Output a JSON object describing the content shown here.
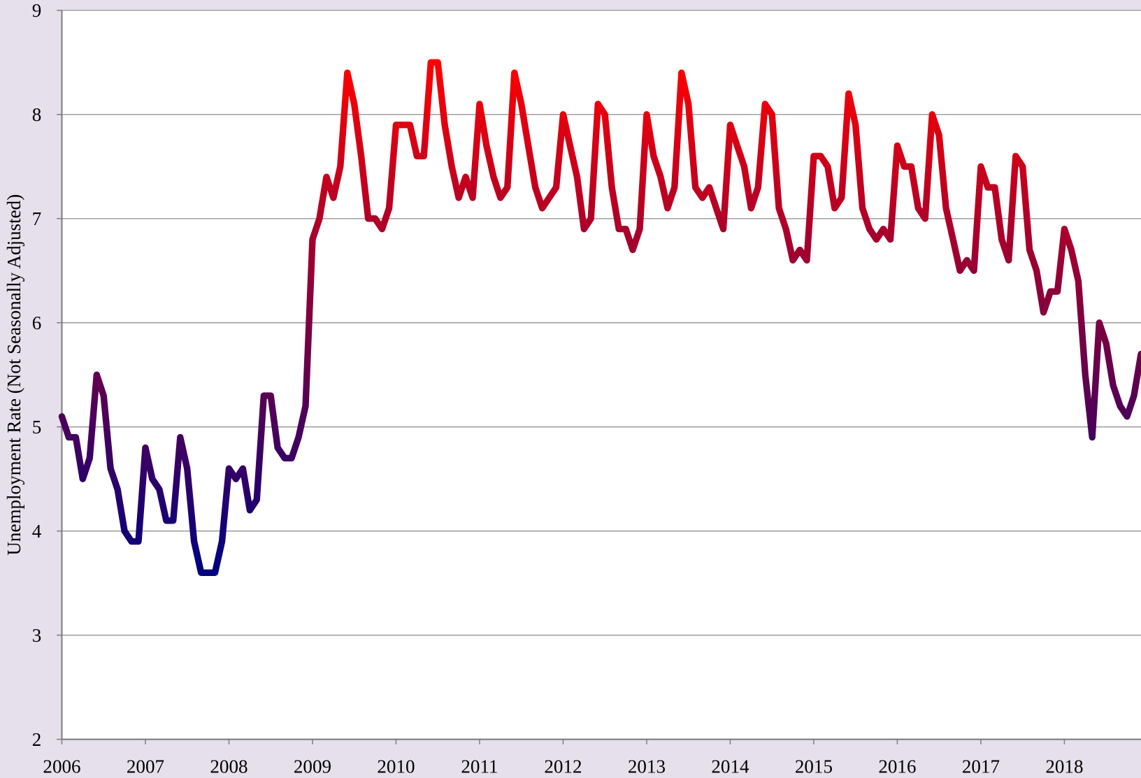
{
  "chart_data": {
    "type": "line",
    "y_label": "Unemployment Rate (Not Seasonally Adjusted)",
    "x": [
      2006,
      2006.083,
      2006.167,
      2006.25,
      2006.333,
      2006.417,
      2006.5,
      2006.583,
      2006.667,
      2006.75,
      2006.833,
      2006.917,
      2007,
      2007.083,
      2007.167,
      2007.25,
      2007.333,
      2007.417,
      2007.5,
      2007.583,
      2007.667,
      2007.75,
      2007.833,
      2007.917,
      2008,
      2008.083,
      2008.167,
      2008.25,
      2008.333,
      2008.417,
      2008.5,
      2008.583,
      2008.667,
      2008.75,
      2008.833,
      2008.917,
      2009,
      2009.083,
      2009.167,
      2009.25,
      2009.333,
      2009.417,
      2009.5,
      2009.583,
      2009.667,
      2009.75,
      2009.833,
      2009.917,
      2010,
      2010.083,
      2010.167,
      2010.25,
      2010.333,
      2010.417,
      2010.5,
      2010.583,
      2010.667,
      2010.75,
      2010.833,
      2010.917,
      2011,
      2011.083,
      2011.167,
      2011.25,
      2011.333,
      2011.417,
      2011.5,
      2011.583,
      2011.667,
      2011.75,
      2011.833,
      2011.917,
      2012,
      2012.083,
      2012.167,
      2012.25,
      2012.333,
      2012.417,
      2012.5,
      2012.583,
      2012.667,
      2012.75,
      2012.833,
      2012.917,
      2013,
      2013.083,
      2013.167,
      2013.25,
      2013.333,
      2013.417,
      2013.5,
      2013.583,
      2013.667,
      2013.75,
      2013.833,
      2013.917,
      2014,
      2014.083,
      2014.167,
      2014.25,
      2014.333,
      2014.417,
      2014.5,
      2014.583,
      2014.667,
      2014.75,
      2014.833,
      2014.917,
      2015,
      2015.083,
      2015.167,
      2015.25,
      2015.333,
      2015.417,
      2015.5,
      2015.583,
      2015.667,
      2015.75,
      2015.833,
      2015.917,
      2016,
      2016.083,
      2016.167,
      2016.25,
      2016.333,
      2016.417,
      2016.5,
      2016.583,
      2016.667,
      2016.75,
      2016.833,
      2016.917,
      2017,
      2017.083,
      2017.167,
      2017.25,
      2017.333,
      2017.417,
      2017.5,
      2017.583,
      2017.667,
      2017.75,
      2017.833,
      2017.917,
      2018,
      2018.083,
      2018.167,
      2018.25,
      2018.333,
      2018.417,
      2018.5,
      2018.583,
      2018.667,
      2018.75,
      2018.833,
      2018.917
    ],
    "values": [
      5.1,
      4.9,
      4.9,
      4.5,
      4.7,
      5.5,
      5.3,
      4.6,
      4.4,
      4.0,
      3.9,
      3.9,
      4.8,
      4.5,
      4.4,
      4.1,
      4.1,
      4.9,
      4.6,
      3.9,
      3.6,
      3.6,
      3.6,
      3.9,
      4.6,
      4.5,
      4.6,
      4.2,
      4.3,
      5.3,
      5.3,
      4.8,
      4.7,
      4.7,
      4.9,
      5.2,
      6.8,
      7.0,
      7.4,
      7.2,
      7.5,
      8.4,
      8.1,
      7.6,
      7.0,
      7.0,
      6.9,
      7.1,
      7.9,
      7.9,
      7.9,
      7.6,
      7.6,
      8.5,
      8.5,
      7.9,
      7.5,
      7.2,
      7.4,
      7.2,
      8.1,
      7.7,
      7.4,
      7.2,
      7.3,
      8.4,
      8.1,
      7.7,
      7.3,
      7.1,
      7.2,
      7.3,
      8.0,
      7.7,
      7.4,
      6.9,
      7.0,
      8.1,
      8.0,
      7.3,
      6.9,
      6.9,
      6.7,
      6.9,
      8.0,
      7.6,
      7.4,
      7.1,
      7.3,
      8.4,
      8.1,
      7.3,
      7.2,
      7.3,
      7.1,
      6.9,
      7.9,
      7.7,
      7.5,
      7.1,
      7.3,
      8.1,
      8.0,
      7.1,
      6.9,
      6.6,
      6.7,
      6.6,
      7.6,
      7.6,
      7.5,
      7.1,
      7.2,
      8.2,
      7.9,
      7.1,
      6.9,
      6.8,
      6.9,
      6.8,
      7.7,
      7.5,
      7.5,
      7.1,
      7.0,
      8.0,
      7.8,
      7.1,
      6.8,
      6.5,
      6.6,
      6.5,
      7.5,
      7.3,
      7.3,
      6.8,
      6.6,
      7.6,
      7.5,
      6.7,
      6.5,
      6.1,
      6.3,
      6.3,
      6.9,
      6.7,
      6.4,
      5.5,
      4.9,
      6.0,
      5.8,
      5.4,
      5.2,
      5.1,
      5.3,
      5.7
    ],
    "color_low": "#000080",
    "color_high": "#ff0000",
    "xlim": [
      2006,
      2018.917
    ],
    "xticks": [
      2006,
      2007,
      2008,
      2009,
      2010,
      2011,
      2012,
      2013,
      2014,
      2015,
      2016,
      2017,
      2018
    ],
    "ylim": [
      2,
      9
    ],
    "yticks": [
      2,
      3,
      4,
      5,
      6,
      7,
      8,
      9
    ],
    "grid": true
  }
}
